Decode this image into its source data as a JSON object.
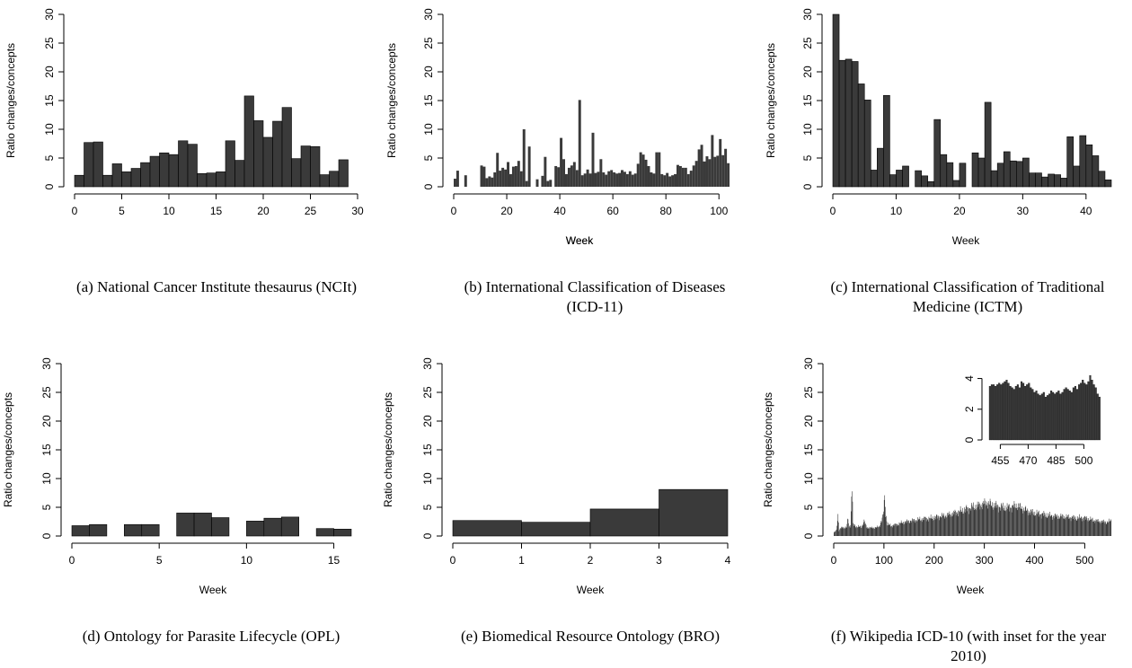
{
  "chart_data": [
    {
      "type": "bar",
      "xlabel": "Week",
      "ylabel": "Ratio changes/concepts",
      "xlim": [
        0,
        30
      ],
      "ylim": [
        0,
        30
      ],
      "xticks": [
        0,
        5,
        10,
        15,
        20,
        25,
        30
      ],
      "yticks": [
        0,
        5,
        10,
        15,
        20,
        25,
        30
      ],
      "bin_width": 1,
      "x_start": 0,
      "values": [
        2.0,
        7.7,
        7.8,
        2.0,
        4.0,
        2.6,
        3.2,
        4.2,
        5.3,
        5.9,
        5.6,
        8.0,
        7.4,
        2.3,
        2.4,
        2.6,
        8.0,
        4.6,
        15.8,
        11.5,
        8.6,
        11.4,
        13.8,
        4.9,
        7.1,
        7.0,
        2.1,
        2.7,
        4.7
      ],
      "caption": "(a)  National Cancer Institute thesaurus (NCIt)"
    },
    {
      "type": "bar",
      "xlabel": "Week",
      "ylabel": "Ratio changes/concepts",
      "xlim": [
        0,
        105
      ],
      "ylim": [
        0,
        30
      ],
      "xticks": [
        0,
        20,
        40,
        60,
        80,
        100
      ],
      "yticks": [
        0,
        5,
        10,
        15,
        20,
        25,
        30
      ],
      "bin_width": 1,
      "x_start": 0,
      "values": [
        1.4,
        2.8,
        0,
        0,
        2.0,
        0,
        0,
        0,
        0,
        0,
        3.7,
        3.5,
        1.5,
        1.8,
        1.6,
        2.5,
        5.9,
        2.8,
        3.3,
        3.0,
        4.3,
        2.2,
        3.5,
        3.6,
        4.5,
        2.7,
        10.0,
        1.0,
        7.0,
        0,
        0,
        1.3,
        0,
        1.9,
        5.2,
        1.0,
        1.2,
        0,
        3.6,
        3.4,
        8.5,
        4.8,
        2.2,
        3.3,
        3.7,
        4.3,
        2.9,
        15.1,
        2.0,
        2.3,
        3.0,
        2.3,
        9.4,
        2.4,
        2.6,
        4.8,
        2.5,
        2.1,
        2.7,
        2.9,
        2.5,
        2.3,
        2.4,
        2.9,
        2.6,
        2.2,
        2.7,
        2.1,
        2.3,
        4.0,
        6.0,
        5.6,
        4.7,
        3.6,
        2.5,
        2.3,
        6.0,
        6.0,
        2.2,
        2.0,
        2.4,
        1.8,
        2.0,
        2.2,
        3.8,
        3.6,
        3.3,
        3.3,
        2.2,
        2.8,
        3.7,
        4.5,
        6.5,
        7.3,
        4.4,
        5.3,
        4.8,
        9.0,
        5.2,
        5.4,
        8.3,
        5.5,
        6.6,
        4.1
      ],
      "caption_line1": "(b)  International Classification of Diseases",
      "caption_line2": "(ICD-11)"
    },
    {
      "type": "bar",
      "xlabel": "Week",
      "ylabel": "Ratio changes/concepts",
      "xlim": [
        0,
        44
      ],
      "ylim": [
        0,
        30
      ],
      "xticks": [
        0,
        10,
        20,
        30,
        40
      ],
      "yticks": [
        0,
        5,
        10,
        15,
        20,
        25,
        30
      ],
      "bin_width": 1,
      "x_start": 0,
      "values": [
        30.0,
        22.0,
        22.2,
        21.8,
        17.9,
        15.1,
        2.9,
        6.7,
        15.9,
        2.1,
        2.9,
        3.6,
        0,
        2.8,
        1.9,
        0.9,
        11.7,
        5.6,
        4.2,
        1.1,
        4.1,
        0,
        5.9,
        5.0,
        14.7,
        2.8,
        4.1,
        6.1,
        4.5,
        4.4,
        5.0,
        2.4,
        2.4,
        1.7,
        2.2,
        2.1,
        1.5,
        8.7,
        3.6,
        8.9,
        7.3,
        5.4,
        2.7,
        1.2
      ],
      "caption_line1": "(c)  International Classification of Traditional",
      "caption_line2": "Medicine (ICTM)"
    },
    {
      "type": "bar",
      "xlabel": "Week",
      "ylabel": "Ratio changes/concepts",
      "xlim": [
        0,
        16
      ],
      "ylim": [
        0,
        30
      ],
      "xticks": [
        0,
        5,
        10,
        15
      ],
      "yticks": [
        0,
        5,
        10,
        15,
        20,
        25,
        30
      ],
      "bin_width": 1,
      "x_start": 0,
      "values": [
        1.8,
        2.0,
        0,
        2.0,
        2.0,
        0,
        4.0,
        4.0,
        3.2,
        0,
        2.6,
        3.1,
        3.3,
        0,
        1.3,
        1.2
      ],
      "caption": "(d)  Ontology for Parasite Lifecycle (OPL)"
    },
    {
      "type": "bar",
      "xlabel": "Week",
      "ylabel": "Ratio changes/concepts",
      "xlim": [
        0,
        4
      ],
      "ylim": [
        0,
        30
      ],
      "xticks": [
        0,
        1,
        2,
        3,
        4
      ],
      "yticks": [
        0,
        5,
        10,
        15,
        20,
        25,
        30
      ],
      "bin_width": 1,
      "x_start": 0,
      "values": [
        2.7,
        2.4,
        4.7,
        8.1
      ],
      "caption": "(e)  Biomedical Resource Ontology (BRO)"
    },
    {
      "type": "bar",
      "xlabel": "Week",
      "ylabel": "Ratio changes/concepts",
      "xlim": [
        0,
        553
      ],
      "ylim": [
        0,
        30
      ],
      "xticks": [
        0,
        100,
        200,
        300,
        400,
        500
      ],
      "yticks": [
        0,
        5,
        10,
        15,
        20,
        25,
        30
      ],
      "bin_width": 1,
      "x_start": 0,
      "series_summary_points": [
        [
          0,
          0.6
        ],
        [
          5,
          1.0
        ],
        [
          8,
          3.8
        ],
        [
          10,
          1.0
        ],
        [
          14,
          1.4
        ],
        [
          20,
          1.5
        ],
        [
          25,
          1.5
        ],
        [
          28,
          3.0
        ],
        [
          30,
          1.5
        ],
        [
          33,
          2.0
        ],
        [
          36,
          8.9
        ],
        [
          38,
          2.0
        ],
        [
          45,
          1.6
        ],
        [
          55,
          1.6
        ],
        [
          60,
          2.6
        ],
        [
          65,
          1.5
        ],
        [
          75,
          1.4
        ],
        [
          85,
          1.5
        ],
        [
          90,
          1.6
        ],
        [
          98,
          3.5
        ],
        [
          101,
          6.8
        ],
        [
          103,
          4.0
        ],
        [
          106,
          2.0
        ],
        [
          115,
          1.8
        ],
        [
          125,
          2.0
        ],
        [
          135,
          2.3
        ],
        [
          150,
          2.6
        ],
        [
          165,
          2.8
        ],
        [
          180,
          3.0
        ],
        [
          195,
          3.1
        ],
        [
          210,
          3.4
        ],
        [
          225,
          3.6
        ],
        [
          240,
          4.0
        ],
        [
          255,
          4.4
        ],
        [
          265,
          4.7
        ],
        [
          275,
          5.0
        ],
        [
          285,
          5.2
        ],
        [
          295,
          5.5
        ],
        [
          305,
          5.8
        ],
        [
          315,
          5.4
        ],
        [
          325,
          5.2
        ],
        [
          335,
          5.0
        ],
        [
          345,
          4.9
        ],
        [
          355,
          5.1
        ],
        [
          365,
          5.3
        ],
        [
          375,
          4.8
        ],
        [
          385,
          4.4
        ],
        [
          395,
          4.1
        ],
        [
          405,
          3.9
        ],
        [
          415,
          3.8
        ],
        [
          425,
          3.6
        ],
        [
          435,
          3.5
        ],
        [
          445,
          3.4
        ],
        [
          455,
          3.4
        ],
        [
          465,
          3.3
        ],
        [
          475,
          3.2
        ],
        [
          485,
          3.1
        ],
        [
          495,
          3.2
        ],
        [
          505,
          3.0
        ],
        [
          515,
          2.8
        ],
        [
          525,
          2.6
        ],
        [
          535,
          2.5
        ],
        [
          545,
          2.4
        ],
        [
          553,
          2.7
        ]
      ],
      "inset": {
        "xlim": [
          449,
          509
        ],
        "ylim": [
          0,
          4.5
        ],
        "xticks": [
          455,
          470,
          485,
          500
        ],
        "yticks": [
          0,
          2,
          4
        ],
        "x_start": 449,
        "values": [
          3.5,
          3.6,
          3.6,
          3.5,
          3.6,
          3.7,
          3.6,
          3.7,
          3.8,
          3.9,
          3.7,
          3.5,
          3.4,
          3.3,
          3.5,
          3.6,
          3.4,
          3.8,
          3.7,
          3.5,
          3.6,
          3.7,
          3.4,
          3.3,
          3.1,
          3.2,
          3.0,
          2.9,
          3.0,
          3.1,
          2.8,
          2.9,
          3.0,
          3.2,
          3.1,
          3.0,
          3.1,
          3.2,
          3.0,
          3.1,
          3.3,
          3.4,
          3.3,
          3.2,
          3.1,
          3.4,
          3.5,
          3.3,
          3.6,
          3.7,
          3.9,
          3.7,
          3.6,
          3.8,
          4.2,
          3.9,
          3.6,
          3.4,
          3.0,
          2.8
        ]
      },
      "caption_line1": "(f)  Wikipedia ICD-10 (with inset for the year",
      "caption_line2": "2010)"
    }
  ]
}
